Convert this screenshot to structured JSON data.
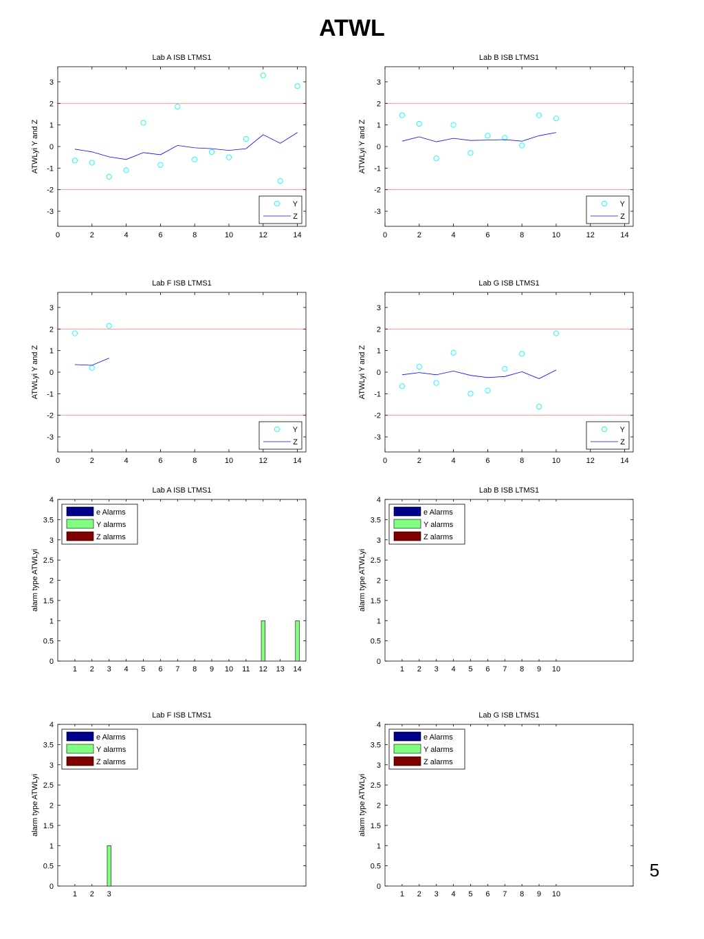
{
  "page": {
    "title": "ATWL",
    "page_number": "5"
  },
  "chart_data": [
    {
      "type": "scatter+line",
      "title": "Lab A ISB LTMS1",
      "ylabel": "ATWLyi Y and Z",
      "xlabel": "",
      "xlim": [
        0,
        14.5
      ],
      "ylim": [
        -3.7,
        3.7
      ],
      "xticks": [
        0,
        2,
        4,
        6,
        8,
        10,
        12,
        14
      ],
      "yticks": [
        -3,
        -2,
        -1,
        0,
        1,
        2,
        3
      ],
      "limit_lines": [
        2,
        -2
      ],
      "series": [
        {
          "name": "Y",
          "marker": "circle",
          "color": "#00ffff",
          "x": [
            1,
            2,
            3,
            4,
            5,
            6,
            7,
            8,
            9,
            10,
            11,
            12,
            13,
            14
          ],
          "y": [
            -0.65,
            -0.75,
            -1.4,
            -1.1,
            1.1,
            -0.85,
            1.85,
            -0.6,
            -0.25,
            -0.5,
            0.35,
            3.3,
            -1.6,
            2.8
          ]
        },
        {
          "name": "Z",
          "marker": "line",
          "color": "#0000ff",
          "x": [
            1,
            2,
            3,
            4,
            5,
            6,
            7,
            8,
            9,
            10,
            11,
            12,
            13,
            14
          ],
          "y": [
            -0.12,
            -0.25,
            -0.48,
            -0.6,
            -0.28,
            -0.38,
            0.05,
            -0.06,
            -0.1,
            -0.18,
            -0.1,
            0.55,
            0.15,
            0.65
          ]
        }
      ],
      "legend": [
        "Y",
        "Z"
      ],
      "legend_position": "bottom-right"
    },
    {
      "type": "scatter+line",
      "title": "Lab B ISB LTMS1",
      "ylabel": "ATWLyi Y and Z",
      "xlabel": "",
      "xlim": [
        0,
        14.5
      ],
      "ylim": [
        -3.7,
        3.7
      ],
      "xticks": [
        0,
        2,
        4,
        6,
        8,
        10,
        12,
        14
      ],
      "yticks": [
        -3,
        -2,
        -1,
        0,
        1,
        2,
        3
      ],
      "limit_lines": [
        2,
        -2
      ],
      "series": [
        {
          "name": "Y",
          "marker": "circle",
          "color": "#00ffff",
          "x": [
            1,
            2,
            3,
            4,
            5,
            6,
            7,
            8,
            9,
            10
          ],
          "y": [
            1.45,
            1.05,
            -0.55,
            1.0,
            -0.3,
            0.5,
            0.4,
            0.05,
            1.45,
            1.3
          ]
        },
        {
          "name": "Z",
          "marker": "line",
          "color": "#0000ff",
          "x": [
            1,
            2,
            3,
            4,
            5,
            6,
            7,
            8,
            9,
            10
          ],
          "y": [
            0.25,
            0.45,
            0.22,
            0.38,
            0.28,
            0.3,
            0.32,
            0.25,
            0.5,
            0.65
          ]
        }
      ],
      "legend": [
        "Y",
        "Z"
      ],
      "legend_position": "bottom-right"
    },
    {
      "type": "scatter+line",
      "title": "Lab F ISB LTMS1",
      "ylabel": "ATWLyi Y and Z",
      "xlabel": "",
      "xlim": [
        0,
        14.5
      ],
      "ylim": [
        -3.7,
        3.7
      ],
      "xticks": [
        0,
        2,
        4,
        6,
        8,
        10,
        12,
        14
      ],
      "yticks": [
        -3,
        -2,
        -1,
        0,
        1,
        2,
        3
      ],
      "limit_lines": [
        2,
        -2
      ],
      "series": [
        {
          "name": "Y",
          "marker": "circle",
          "color": "#00ffff",
          "x": [
            1,
            2,
            3
          ],
          "y": [
            1.8,
            0.2,
            2.15
          ]
        },
        {
          "name": "Z",
          "marker": "line",
          "color": "#0000ff",
          "x": [
            1,
            2,
            3
          ],
          "y": [
            0.35,
            0.32,
            0.65
          ]
        }
      ],
      "legend": [
        "Y",
        "Z"
      ],
      "legend_position": "bottom-right"
    },
    {
      "type": "scatter+line",
      "title": "Lab G ISB LTMS1",
      "ylabel": "ATWLyi Y and Z",
      "xlabel": "",
      "xlim": [
        0,
        14.5
      ],
      "ylim": [
        -3.7,
        3.7
      ],
      "xticks": [
        0,
        2,
        4,
        6,
        8,
        10,
        12,
        14
      ],
      "yticks": [
        -3,
        -2,
        -1,
        0,
        1,
        2,
        3
      ],
      "limit_lines": [
        2,
        -2
      ],
      "series": [
        {
          "name": "Y",
          "marker": "circle",
          "color": "#00ffff",
          "x": [
            1,
            2,
            3,
            4,
            5,
            6,
            7,
            8,
            9,
            10
          ],
          "y": [
            -0.65,
            0.25,
            -0.5,
            0.9,
            -1.0,
            -0.85,
            0.15,
            0.85,
            -1.6,
            1.8
          ]
        },
        {
          "name": "Z",
          "marker": "line",
          "color": "#0000ff",
          "x": [
            1,
            2,
            3,
            4,
            5,
            6,
            7,
            8,
            9,
            10
          ],
          "y": [
            -0.12,
            -0.02,
            -0.12,
            0.05,
            -0.15,
            -0.25,
            -0.2,
            0.02,
            -0.3,
            0.1
          ]
        }
      ],
      "legend": [
        "Y",
        "Z"
      ],
      "legend_position": "bottom-right"
    },
    {
      "type": "bar",
      "title": "Lab A ISB LTMS1",
      "ylabel": "alarm type ATWLyi",
      "xlabel": "",
      "ylim": [
        0,
        4
      ],
      "yticks": [
        0,
        0.5,
        1,
        1.5,
        2,
        2.5,
        3,
        3.5,
        4
      ],
      "n_slots": 14,
      "categories": [
        "1",
        "2",
        "3",
        "4",
        "5",
        "6",
        "7",
        "8",
        "9",
        "10",
        "11",
        "12",
        "13",
        "14"
      ],
      "series": [
        {
          "name": "e Alarms",
          "color": "#00008b",
          "values": [
            0,
            0,
            0,
            0,
            0,
            0,
            0,
            0,
            0,
            0,
            0,
            0,
            0,
            0
          ]
        },
        {
          "name": "Y alarms",
          "color": "#80ff80",
          "values": [
            0,
            0,
            0,
            0,
            0,
            0,
            0,
            0,
            0,
            0,
            0,
            1,
            0,
            1
          ]
        },
        {
          "name": "Z alarms",
          "color": "#800000",
          "values": [
            0,
            0,
            0,
            0,
            0,
            0,
            0,
            0,
            0,
            0,
            0,
            0,
            0,
            0
          ]
        }
      ],
      "legend": [
        "e Alarms",
        "Y alarms",
        "Z alarms"
      ],
      "legend_position": "top-left"
    },
    {
      "type": "bar",
      "title": "Lab B ISB LTMS1",
      "ylabel": "alarm type ATWLyi",
      "xlabel": "",
      "ylim": [
        0,
        4
      ],
      "yticks": [
        0,
        0.5,
        1,
        1.5,
        2,
        2.5,
        3,
        3.5,
        4
      ],
      "n_slots": 14,
      "categories": [
        "1",
        "2",
        "3",
        "4",
        "5",
        "6",
        "7",
        "8",
        "9",
        "10"
      ],
      "series": [
        {
          "name": "e Alarms",
          "color": "#00008b",
          "values": [
            0,
            0,
            0,
            0,
            0,
            0,
            0,
            0,
            0,
            0
          ]
        },
        {
          "name": "Y alarms",
          "color": "#80ff80",
          "values": [
            0,
            0,
            0,
            0,
            0,
            0,
            0,
            0,
            0,
            0
          ]
        },
        {
          "name": "Z alarms",
          "color": "#800000",
          "values": [
            0,
            0,
            0,
            0,
            0,
            0,
            0,
            0,
            0,
            0
          ]
        }
      ],
      "legend": [
        "e Alarms",
        "Y alarms",
        "Z alarms"
      ],
      "legend_position": "top-left"
    },
    {
      "type": "bar",
      "title": "Lab F ISB LTMS1",
      "ylabel": "alarm type ATWLyi",
      "xlabel": "",
      "ylim": [
        0,
        4
      ],
      "yticks": [
        0,
        0.5,
        1,
        1.5,
        2,
        2.5,
        3,
        3.5,
        4
      ],
      "n_slots": 14,
      "categories": [
        "1",
        "2",
        "3"
      ],
      "series": [
        {
          "name": "e Alarms",
          "color": "#00008b",
          "values": [
            0,
            0,
            0
          ]
        },
        {
          "name": "Y alarms",
          "color": "#80ff80",
          "values": [
            0,
            0,
            1
          ]
        },
        {
          "name": "Z alarms",
          "color": "#800000",
          "values": [
            0,
            0,
            0
          ]
        }
      ],
      "legend": [
        "e Alarms",
        "Y alarms",
        "Z alarms"
      ],
      "legend_position": "top-left"
    },
    {
      "type": "bar",
      "title": "Lab G ISB LTMS1",
      "ylabel": "alarm type ATWLyi",
      "xlabel": "",
      "ylim": [
        0,
        4
      ],
      "yticks": [
        0,
        0.5,
        1,
        1.5,
        2,
        2.5,
        3,
        3.5,
        4
      ],
      "n_slots": 14,
      "categories": [
        "1",
        "2",
        "3",
        "4",
        "5",
        "6",
        "7",
        "8",
        "9",
        "10"
      ],
      "series": [
        {
          "name": "e Alarms",
          "color": "#00008b",
          "values": [
            0,
            0,
            0,
            0,
            0,
            0,
            0,
            0,
            0,
            0
          ]
        },
        {
          "name": "Y alarms",
          "color": "#80ff80",
          "values": [
            0,
            0,
            0,
            0,
            0,
            0,
            0,
            0,
            0,
            0
          ]
        },
        {
          "name": "Z alarms",
          "color": "#800000",
          "values": [
            0,
            0,
            0,
            0,
            0,
            0,
            0,
            0,
            0,
            0
          ]
        }
      ],
      "legend": [
        "e Alarms",
        "Y alarms",
        "Z alarms"
      ],
      "legend_position": "top-left"
    }
  ]
}
